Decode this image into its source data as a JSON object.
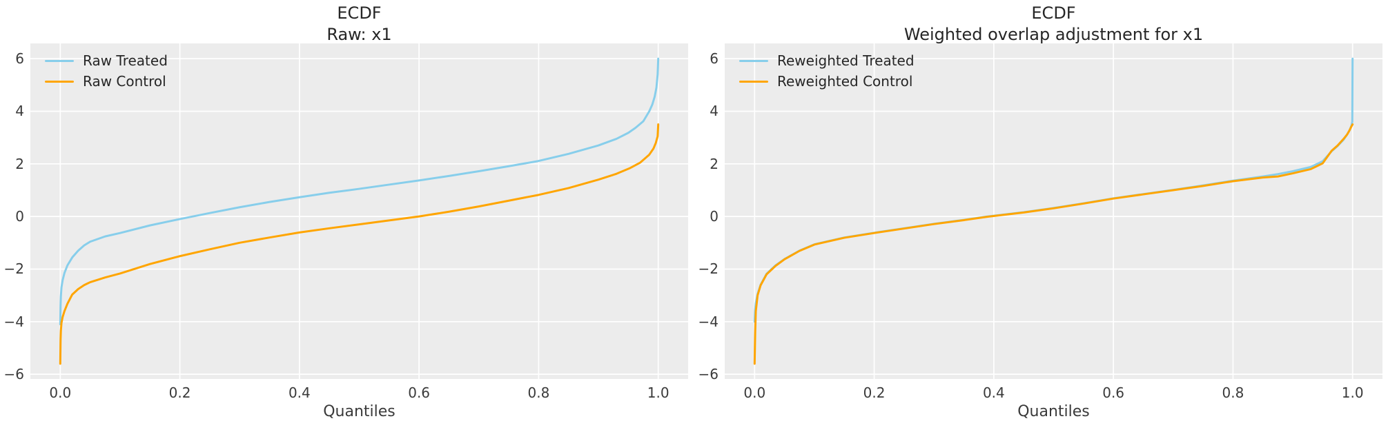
{
  "palette": {
    "figure_bg": "#ffffff",
    "axes_bg": "#ececec",
    "grid": "#ffffff",
    "tick_text": "#3a3a3a",
    "title_text": "#262626",
    "treated": "#87CEEB",
    "control": "#FFA500"
  },
  "chart_data": [
    {
      "type": "line",
      "title": "ECDF",
      "subtitle": "Raw: x1",
      "xlabel": "Quantiles",
      "xlim": [
        -0.05,
        1.05
      ],
      "ylim": [
        -6.18,
        6.58
      ],
      "grid": true,
      "legend_position": "upper-left",
      "x_ticks": {
        "values": [
          0.0,
          0.2,
          0.4,
          0.6,
          0.8,
          1.0
        ],
        "labels": [
          "0.0",
          "0.2",
          "0.4",
          "0.6",
          "0.8",
          "1.0"
        ]
      },
      "y_ticks": {
        "values": [
          6,
          4,
          2,
          0,
          -2,
          -4,
          -6
        ],
        "labels": [
          "6",
          "4",
          "2",
          "0",
          "−2",
          "−4",
          "−6"
        ]
      },
      "series": [
        {
          "name": "Raw Treated",
          "color": "#87CEEB",
          "points": [
            [
              0.0,
              -4.1
            ],
            [
              0.0005,
              -3.4
            ],
            [
              0.001,
              -3.05
            ],
            [
              0.002,
              -2.7
            ],
            [
              0.004,
              -2.42
            ],
            [
              0.007,
              -2.15
            ],
            [
              0.012,
              -1.86
            ],
            [
              0.02,
              -1.56
            ],
            [
              0.03,
              -1.3
            ],
            [
              0.04,
              -1.1
            ],
            [
              0.05,
              -0.96
            ],
            [
              0.075,
              -0.76
            ],
            [
              0.1,
              -0.63
            ],
            [
              0.15,
              -0.34
            ],
            [
              0.2,
              -0.1
            ],
            [
              0.25,
              0.13
            ],
            [
              0.3,
              0.35
            ],
            [
              0.35,
              0.55
            ],
            [
              0.4,
              0.73
            ],
            [
              0.45,
              0.9
            ],
            [
              0.5,
              1.05
            ],
            [
              0.55,
              1.21
            ],
            [
              0.6,
              1.37
            ],
            [
              0.65,
              1.54
            ],
            [
              0.7,
              1.72
            ],
            [
              0.75,
              1.91
            ],
            [
              0.8,
              2.11
            ],
            [
              0.85,
              2.38
            ],
            [
              0.9,
              2.7
            ],
            [
              0.93,
              2.95
            ],
            [
              0.95,
              3.18
            ],
            [
              0.962,
              3.37
            ],
            [
              0.975,
              3.62
            ],
            [
              0.985,
              4.0
            ],
            [
              0.99,
              4.25
            ],
            [
              0.994,
              4.55
            ],
            [
              0.997,
              4.9
            ],
            [
              0.999,
              5.4
            ],
            [
              1.0,
              6.0
            ]
          ]
        },
        {
          "name": "Raw Control",
          "color": "#FFA500",
          "points": [
            [
              0.0,
              -5.6
            ],
            [
              0.0005,
              -4.7
            ],
            [
              0.001,
              -4.35
            ],
            [
              0.002,
              -4.05
            ],
            [
              0.004,
              -3.82
            ],
            [
              0.007,
              -3.6
            ],
            [
              0.012,
              -3.32
            ],
            [
              0.02,
              -2.97
            ],
            [
              0.03,
              -2.76
            ],
            [
              0.04,
              -2.61
            ],
            [
              0.05,
              -2.5
            ],
            [
              0.075,
              -2.32
            ],
            [
              0.1,
              -2.17
            ],
            [
              0.15,
              -1.81
            ],
            [
              0.2,
              -1.51
            ],
            [
              0.25,
              -1.25
            ],
            [
              0.3,
              -1.0
            ],
            [
              0.35,
              -0.8
            ],
            [
              0.4,
              -0.61
            ],
            [
              0.45,
              -0.45
            ],
            [
              0.5,
              -0.3
            ],
            [
              0.55,
              -0.15
            ],
            [
              0.6,
              0.0
            ],
            [
              0.65,
              0.18
            ],
            [
              0.7,
              0.38
            ],
            [
              0.75,
              0.6
            ],
            [
              0.8,
              0.82
            ],
            [
              0.85,
              1.08
            ],
            [
              0.9,
              1.4
            ],
            [
              0.93,
              1.62
            ],
            [
              0.952,
              1.83
            ],
            [
              0.97,
              2.05
            ],
            [
              0.985,
              2.35
            ],
            [
              0.992,
              2.58
            ],
            [
              0.996,
              2.8
            ],
            [
              0.999,
              3.05
            ],
            [
              1.0,
              3.5
            ]
          ]
        }
      ]
    },
    {
      "type": "line",
      "title": "ECDF",
      "subtitle": "Weighted overlap adjustment for x1",
      "xlabel": "Quantiles",
      "xlim": [
        -0.05,
        1.05
      ],
      "ylim": [
        -6.18,
        6.58
      ],
      "grid": true,
      "legend_position": "upper-left",
      "x_ticks": {
        "values": [
          0.0,
          0.2,
          0.4,
          0.6,
          0.8,
          1.0
        ],
        "labels": [
          "0.0",
          "0.2",
          "0.4",
          "0.6",
          "0.8",
          "1.0"
        ]
      },
      "y_ticks": {
        "values": [
          6,
          4,
          2,
          0,
          -2,
          -4,
          -6
        ],
        "labels": [
          "6",
          "4",
          "2",
          "0",
          "−2",
          "−4",
          "−6"
        ]
      },
      "series": [
        {
          "name": "Reweighted Treated",
          "color": "#87CEEB",
          "points": [
            [
              0.0,
              -4.0
            ],
            [
              0.001,
              -3.55
            ],
            [
              0.002,
              -3.3
            ],
            [
              0.005,
              -2.95
            ],
            [
              0.01,
              -2.6
            ],
            [
              0.02,
              -2.18
            ],
            [
              0.035,
              -1.86
            ],
            [
              0.05,
              -1.62
            ],
            [
              0.075,
              -1.3
            ],
            [
              0.1,
              -1.06
            ],
            [
              0.15,
              -0.8
            ],
            [
              0.2,
              -0.62
            ],
            [
              0.25,
              -0.45
            ],
            [
              0.3,
              -0.28
            ],
            [
              0.35,
              -0.13
            ],
            [
              0.39,
              0.0
            ],
            [
              0.45,
              0.16
            ],
            [
              0.5,
              0.32
            ],
            [
              0.55,
              0.5
            ],
            [
              0.6,
              0.69
            ],
            [
              0.65,
              0.85
            ],
            [
              0.7,
              1.01
            ],
            [
              0.75,
              1.18
            ],
            [
              0.8,
              1.36
            ],
            [
              0.85,
              1.52
            ],
            [
              0.875,
              1.61
            ],
            [
              0.9,
              1.72
            ],
            [
              0.93,
              1.88
            ],
            [
              0.95,
              2.1
            ],
            [
              0.965,
              2.48
            ],
            [
              0.975,
              2.68
            ],
            [
              0.985,
              2.92
            ],
            [
              0.991,
              3.12
            ],
            [
              0.995,
              3.28
            ],
            [
              0.998,
              3.45
            ],
            [
              0.9995,
              3.6
            ],
            [
              1.0,
              6.0
            ]
          ]
        },
        {
          "name": "Reweighted Control",
          "color": "#FFA500",
          "points": [
            [
              0.0,
              -5.6
            ],
            [
              0.001,
              -4.4
            ],
            [
              0.002,
              -3.6
            ],
            [
              0.005,
              -3.0
            ],
            [
              0.01,
              -2.62
            ],
            [
              0.02,
              -2.2
            ],
            [
              0.035,
              -1.88
            ],
            [
              0.05,
              -1.63
            ],
            [
              0.075,
              -1.31
            ],
            [
              0.1,
              -1.07
            ],
            [
              0.15,
              -0.81
            ],
            [
              0.2,
              -0.63
            ],
            [
              0.25,
              -0.46
            ],
            [
              0.3,
              -0.29
            ],
            [
              0.35,
              -0.14
            ],
            [
              0.39,
              -0.01
            ],
            [
              0.45,
              0.15
            ],
            [
              0.5,
              0.31
            ],
            [
              0.55,
              0.49
            ],
            [
              0.6,
              0.68
            ],
            [
              0.65,
              0.84
            ],
            [
              0.7,
              1.0
            ],
            [
              0.75,
              1.16
            ],
            [
              0.8,
              1.34
            ],
            [
              0.85,
              1.48
            ],
            [
              0.875,
              1.52
            ],
            [
              0.9,
              1.64
            ],
            [
              0.93,
              1.8
            ],
            [
              0.95,
              2.02
            ],
            [
              0.965,
              2.5
            ],
            [
              0.975,
              2.7
            ],
            [
              0.985,
              2.95
            ],
            [
              0.991,
              3.12
            ],
            [
              0.995,
              3.28
            ],
            [
              0.998,
              3.42
            ],
            [
              1.0,
              3.5
            ]
          ]
        }
      ]
    }
  ]
}
